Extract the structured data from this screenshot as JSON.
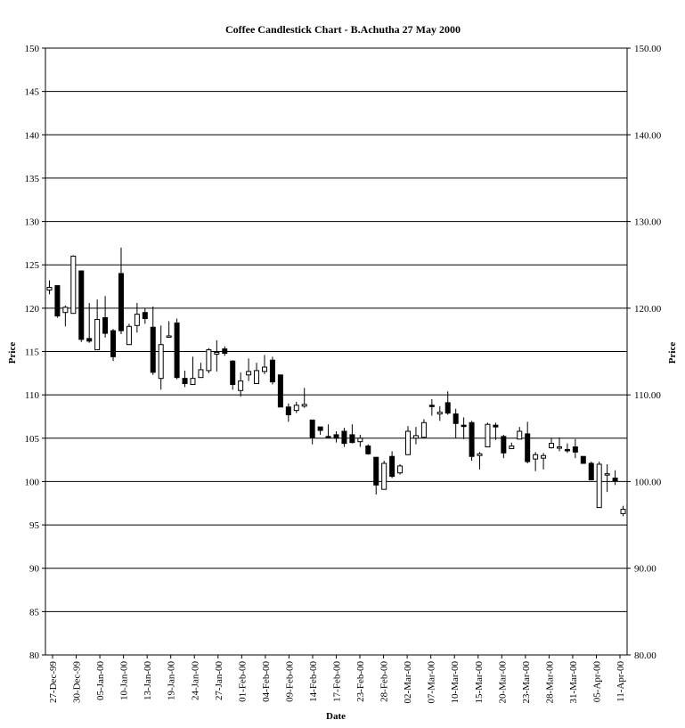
{
  "chart_data": {
    "type": "candlestick",
    "title": "Coffee Candlestick Chart - B.Achutha 27 May 2000",
    "xlabel": "Date",
    "ylabel": "Price",
    "y2label": "Price",
    "ylim": [
      80,
      150
    ],
    "yticks": [
      "80",
      "85",
      "90",
      "95",
      "100",
      "105",
      "110",
      "115",
      "120",
      "125",
      "130",
      "135",
      "140",
      "145",
      "150"
    ],
    "y2ticks": [
      "80.00",
      "90.00",
      "100.00",
      "110.00",
      "120.00",
      "130.00",
      "140.00",
      "150.00"
    ],
    "grid": true,
    "xtick_labels": [
      "27-Dec-99",
      "30-Dec-99",
      "05-Jan-00",
      "10-Jan-00",
      "13-Jan-00",
      "19-Jan-00",
      "24-Jan-00",
      "27-Jan-00",
      "01-Feb-00",
      "04-Feb-00",
      "09-Feb-00",
      "14-Feb-00",
      "17-Feb-00",
      "23-Feb-00",
      "28-Feb-00",
      "02-Mar-00",
      "07-Mar-00",
      "10-Mar-00",
      "15-Mar-00",
      "20-Mar-00",
      "23-Mar-00",
      "28-Mar-00",
      "31-Mar-00",
      "05-Apr-00",
      "11-Apr-00"
    ],
    "candles": [
      {
        "o": 122.1,
        "h": 123.2,
        "l": 121.6,
        "c": 122.4
      },
      {
        "o": 122.6,
        "h": 122.6,
        "l": 118.9,
        "c": 119.1
      },
      {
        "o": 119.5,
        "h": 120.3,
        "l": 117.9,
        "c": 120.1
      },
      {
        "o": 119.4,
        "h": 126.1,
        "l": 119.4,
        "c": 126.0
      },
      {
        "o": 124.3,
        "h": 124.3,
        "l": 116.1,
        "c": 116.4
      },
      {
        "o": 116.5,
        "h": 120.6,
        "l": 116.0,
        "c": 116.2
      },
      {
        "o": 115.2,
        "h": 121.0,
        "l": 115.2,
        "c": 118.7
      },
      {
        "o": 118.9,
        "h": 121.4,
        "l": 116.6,
        "c": 117.1
      },
      {
        "o": 117.4,
        "h": 117.6,
        "l": 113.9,
        "c": 114.4
      },
      {
        "o": 124.0,
        "h": 127.0,
        "l": 117.0,
        "c": 117.4
      },
      {
        "o": 115.8,
        "h": 118.2,
        "l": 115.8,
        "c": 117.9
      },
      {
        "o": 118.0,
        "h": 120.6,
        "l": 117.2,
        "c": 119.3
      },
      {
        "o": 119.5,
        "h": 120.0,
        "l": 118.2,
        "c": 118.8
      },
      {
        "o": 117.8,
        "h": 120.2,
        "l": 112.3,
        "c": 112.6
      },
      {
        "o": 111.9,
        "h": 118.0,
        "l": 110.6,
        "c": 115.8
      },
      {
        "o": 116.8,
        "h": 118.5,
        "l": 116.8,
        "c": 116.8
      },
      {
        "o": 118.3,
        "h": 118.8,
        "l": 111.8,
        "c": 112.0
      },
      {
        "o": 111.9,
        "h": 112.8,
        "l": 110.9,
        "c": 111.3
      },
      {
        "o": 111.2,
        "h": 114.4,
        "l": 111.2,
        "c": 111.9
      },
      {
        "o": 112.0,
        "h": 113.7,
        "l": 112.0,
        "c": 112.9
      },
      {
        "o": 112.8,
        "h": 115.4,
        "l": 112.5,
        "c": 115.2
      },
      {
        "o": 114.7,
        "h": 116.3,
        "l": 112.7,
        "c": 114.9
      },
      {
        "o": 115.3,
        "h": 115.6,
        "l": 114.5,
        "c": 114.8
      },
      {
        "o": 113.9,
        "h": 114.0,
        "l": 110.6,
        "c": 111.2
      },
      {
        "o": 110.5,
        "h": 112.6,
        "l": 109.8,
        "c": 111.6
      },
      {
        "o": 112.3,
        "h": 114.2,
        "l": 111.6,
        "c": 112.7
      },
      {
        "o": 111.3,
        "h": 113.7,
        "l": 111.3,
        "c": 112.8
      },
      {
        "o": 112.7,
        "h": 114.6,
        "l": 112.4,
        "c": 113.2
      },
      {
        "o": 114.0,
        "h": 114.4,
        "l": 111.2,
        "c": 111.5
      },
      {
        "o": 112.3,
        "h": 112.3,
        "l": 108.6,
        "c": 108.6
      },
      {
        "o": 108.6,
        "h": 109.0,
        "l": 106.9,
        "c": 107.7
      },
      {
        "o": 108.2,
        "h": 109.2,
        "l": 107.9,
        "c": 108.8
      },
      {
        "o": 108.7,
        "h": 110.8,
        "l": 108.5,
        "c": 108.9
      },
      {
        "o": 107.1,
        "h": 107.1,
        "l": 104.3,
        "c": 105.1
      },
      {
        "o": 106.3,
        "h": 106.3,
        "l": 105.4,
        "c": 105.9
      },
      {
        "o": 105.2,
        "h": 106.6,
        "l": 105.0,
        "c": 105.1
      },
      {
        "o": 105.4,
        "h": 105.8,
        "l": 104.5,
        "c": 105.0
      },
      {
        "o": 105.8,
        "h": 106.2,
        "l": 104.0,
        "c": 104.4
      },
      {
        "o": 105.4,
        "h": 106.6,
        "l": 104.4,
        "c": 104.5
      },
      {
        "o": 104.6,
        "h": 105.4,
        "l": 104.0,
        "c": 105.0
      },
      {
        "o": 104.1,
        "h": 104.3,
        "l": 103.1,
        "c": 103.2
      },
      {
        "o": 102.8,
        "h": 102.8,
        "l": 98.5,
        "c": 99.6
      },
      {
        "o": 99.1,
        "h": 102.4,
        "l": 99.1,
        "c": 102.1
      },
      {
        "o": 102.9,
        "h": 103.5,
        "l": 100.4,
        "c": 100.6
      },
      {
        "o": 101.0,
        "h": 102.0,
        "l": 100.8,
        "c": 101.8
      },
      {
        "o": 103.1,
        "h": 106.4,
        "l": 103.1,
        "c": 105.8
      },
      {
        "o": 105.0,
        "h": 106.3,
        "l": 104.3,
        "c": 105.3
      },
      {
        "o": 105.1,
        "h": 107.2,
        "l": 105.0,
        "c": 106.8
      },
      {
        "o": 108.8,
        "h": 109.5,
        "l": 107.6,
        "c": 108.7
      },
      {
        "o": 107.8,
        "h": 108.7,
        "l": 107.0,
        "c": 108.0
      },
      {
        "o": 109.1,
        "h": 110.4,
        "l": 107.7,
        "c": 107.9
      },
      {
        "o": 107.8,
        "h": 108.4,
        "l": 105.0,
        "c": 106.7
      },
      {
        "o": 106.5,
        "h": 107.4,
        "l": 104.9,
        "c": 106.4
      },
      {
        "o": 106.8,
        "h": 107.0,
        "l": 102.4,
        "c": 102.9
      },
      {
        "o": 103.0,
        "h": 103.4,
        "l": 101.4,
        "c": 103.2
      },
      {
        "o": 104.0,
        "h": 106.8,
        "l": 104.0,
        "c": 106.6
      },
      {
        "o": 106.5,
        "h": 106.8,
        "l": 104.8,
        "c": 106.3
      },
      {
        "o": 105.2,
        "h": 105.4,
        "l": 102.7,
        "c": 103.3
      },
      {
        "o": 103.8,
        "h": 104.5,
        "l": 103.8,
        "c": 104.1
      },
      {
        "o": 104.9,
        "h": 106.3,
        "l": 104.9,
        "c": 105.8
      },
      {
        "o": 105.5,
        "h": 106.9,
        "l": 102.1,
        "c": 102.3
      },
      {
        "o": 102.6,
        "h": 103.4,
        "l": 101.2,
        "c": 103.1
      },
      {
        "o": 102.7,
        "h": 103.3,
        "l": 101.4,
        "c": 103.0
      },
      {
        "o": 103.9,
        "h": 105.0,
        "l": 103.8,
        "c": 104.4
      },
      {
        "o": 104.0,
        "h": 105.1,
        "l": 103.5,
        "c": 104.0
      },
      {
        "o": 103.7,
        "h": 104.4,
        "l": 103.3,
        "c": 103.6
      },
      {
        "o": 104.0,
        "h": 104.9,
        "l": 102.7,
        "c": 103.4
      },
      {
        "o": 102.9,
        "h": 102.9,
        "l": 102.1,
        "c": 102.1
      },
      {
        "o": 102.1,
        "h": 102.3,
        "l": 100.2,
        "c": 100.2
      },
      {
        "o": 97.0,
        "h": 102.3,
        "l": 97.0,
        "c": 102.0
      },
      {
        "o": 100.9,
        "h": 102.0,
        "l": 98.8,
        "c": 100.9
      },
      {
        "o": 100.4,
        "h": 101.3,
        "l": 99.6,
        "c": 100.1
      },
      {
        "o": 96.3,
        "h": 97.2,
        "l": 96.0,
        "c": 96.8
      }
    ]
  }
}
